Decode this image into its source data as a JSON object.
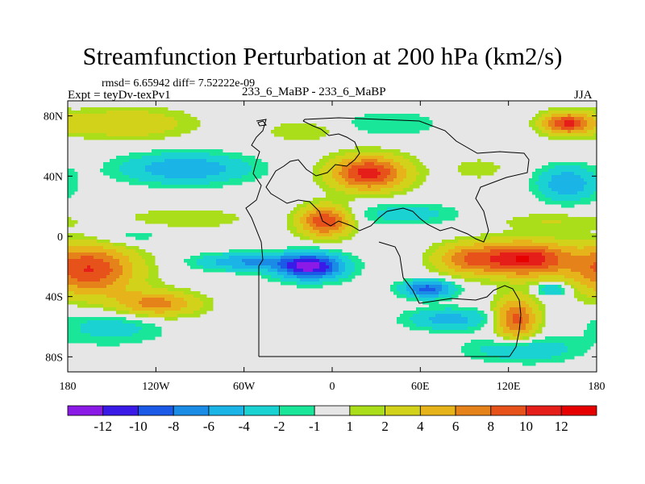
{
  "chart_data": {
    "type": "heatmap",
    "title": "Streamfunction Perturbation at 200 hPa (km2/s)",
    "stats_line": "rmsd= 6.65942  diff= 7.52222e-09",
    "left_label": "Expt = teyDv-texPv1",
    "center_label": "233_6_MaBP - 233_6_MaBP",
    "right_label": "JJA",
    "x_axis": {
      "range": [
        -180,
        180
      ],
      "ticks": [
        {
          "value": -180,
          "label": "180"
        },
        {
          "value": -120,
          "label": "120W"
        },
        {
          "value": -60,
          "label": "60W"
        },
        {
          "value": 0,
          "label": "0"
        },
        {
          "value": 60,
          "label": "60E"
        },
        {
          "value": 120,
          "label": "120E"
        },
        {
          "value": 180,
          "label": "180"
        }
      ]
    },
    "y_axis": {
      "range": [
        -90,
        90
      ],
      "ticks": [
        {
          "value": 80,
          "label": "80N"
        },
        {
          "value": 40,
          "label": "40N"
        },
        {
          "value": 0,
          "label": "0"
        },
        {
          "value": -40,
          "label": "40S"
        },
        {
          "value": -80,
          "label": "80S"
        }
      ]
    },
    "colorbar": {
      "labels": [
        "-12",
        "-10",
        "-8",
        "-6",
        "-4",
        "-2",
        "-1",
        "1",
        "2",
        "4",
        "6",
        "8",
        "10",
        "12"
      ],
      "colors": [
        "#8b1ae6",
        "#3a1ae6",
        "#1a5ae6",
        "#1a8ce6",
        "#1ab4e6",
        "#1ad2d2",
        "#1ae69a",
        "#e6e6e6",
        "#aade1a",
        "#d2d21a",
        "#e6b41a",
        "#e6821a",
        "#e6521a",
        "#e61e1a",
        "#e60000"
      ]
    },
    "field_features": [
      {
        "lon": -15,
        "lat": -20,
        "value": -13,
        "sx": 16,
        "sy": 6
      },
      {
        "lon": -60,
        "lat": -17,
        "value": -6,
        "sx": 22,
        "sy": 4
      },
      {
        "lon": 65,
        "lat": -35,
        "value": -9,
        "sx": 12,
        "sy": 4
      },
      {
        "lon": 150,
        "lat": -35,
        "value": -5,
        "sx": 8,
        "sy": 3
      },
      {
        "lon": 80,
        "lat": -55,
        "value": -5,
        "sx": 20,
        "sy": 5
      },
      {
        "lon": -150,
        "lat": -60,
        "value": -3,
        "sx": 25,
        "sy": 8
      },
      {
        "lon": 130,
        "lat": -75,
        "value": -4,
        "sx": 25,
        "sy": 6
      },
      {
        "lon": -100,
        "lat": 45,
        "value": -6,
        "sx": 30,
        "sy": 7
      },
      {
        "lon": 160,
        "lat": 35,
        "value": -6,
        "sx": 14,
        "sy": 8
      },
      {
        "lon": 40,
        "lat": 75,
        "value": -2,
        "sx": 25,
        "sy": 6
      },
      {
        "lon": -140,
        "lat": 0,
        "value": -2,
        "sx": 20,
        "sy": 5
      },
      {
        "lon": 50,
        "lat": 15,
        "value": -3,
        "sx": 25,
        "sy": 5
      },
      {
        "lon": 25,
        "lat": 42,
        "value": 11,
        "sx": 18,
        "sy": 8
      },
      {
        "lon": -5,
        "lat": 10,
        "value": 10,
        "sx": 12,
        "sy": 7
      },
      {
        "lon": 130,
        "lat": -15,
        "value": 12,
        "sx": 22,
        "sy": 8
      },
      {
        "lon": -165,
        "lat": -22,
        "value": 10,
        "sx": 22,
        "sy": 12
      },
      {
        "lon": -120,
        "lat": -45,
        "value": 7,
        "sx": 20,
        "sy": 6
      },
      {
        "lon": 90,
        "lat": -15,
        "value": 6,
        "sx": 15,
        "sy": 7
      },
      {
        "lon": 125,
        "lat": -55,
        "value": 9,
        "sx": 10,
        "sy": 10
      },
      {
        "lon": -140,
        "lat": 75,
        "value": 4,
        "sx": 30,
        "sy": 7
      },
      {
        "lon": 160,
        "lat": 75,
        "value": 10,
        "sx": 12,
        "sy": 5
      },
      {
        "lon": -100,
        "lat": 12,
        "value": 2,
        "sx": 30,
        "sy": 5
      },
      {
        "lon": 150,
        "lat": 10,
        "value": 2,
        "sx": 25,
        "sy": 4
      },
      {
        "lon": 100,
        "lat": 45,
        "value": 1.5,
        "sx": 15,
        "sy": 6
      },
      {
        "lon": -20,
        "lat": 70,
        "value": 2,
        "sx": 18,
        "sy": 5
      }
    ]
  }
}
